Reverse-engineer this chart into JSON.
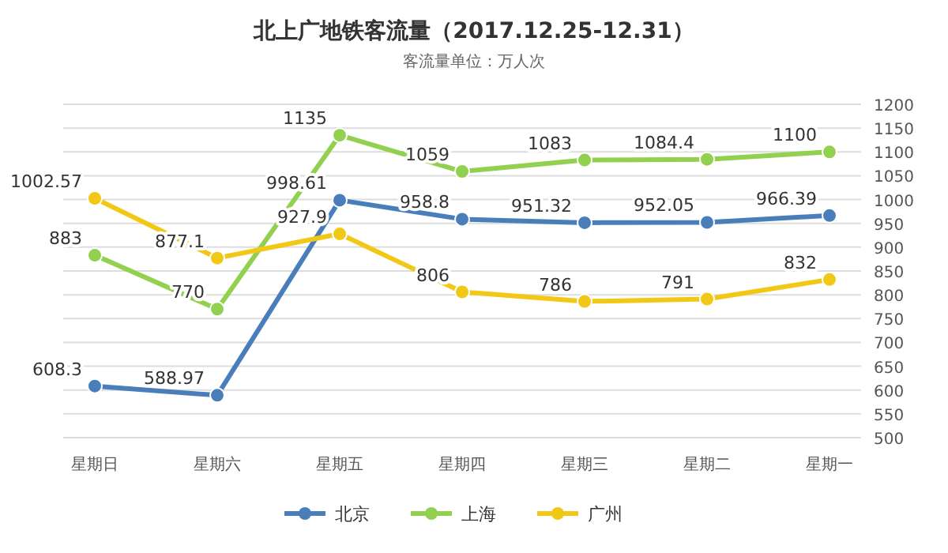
{
  "chart_data": {
    "type": "line",
    "title": "北上广地铁客流量（2017.12.25-12.31）",
    "subtitle": "客流量单位：万人次",
    "categories": [
      "星期日",
      "星期六",
      "星期五",
      "星期四",
      "星期三",
      "星期二",
      "星期一"
    ],
    "series": [
      {
        "name": "北京",
        "color": "#4a7ebb",
        "values": [
          608.3,
          588.97,
          998.61,
          958.8,
          951.32,
          952.05,
          966.39
        ]
      },
      {
        "name": "上海",
        "color": "#92d050",
        "values": [
          883,
          770,
          1135,
          1059,
          1083,
          1084.4,
          1100
        ]
      },
      {
        "name": "广州",
        "color": "#f2c816",
        "values": [
          1002.57,
          877.1,
          927.9,
          806,
          786,
          791,
          832
        ]
      }
    ],
    "ylim": [
      500,
      1200
    ],
    "yticks": [
      500,
      550,
      600,
      650,
      700,
      750,
      800,
      850,
      900,
      950,
      1000,
      1050,
      1100,
      1150,
      1200
    ],
    "grid": "y",
    "legend": "bottom",
    "marker": "circle",
    "line_style": "solid",
    "data_labels": true
  }
}
